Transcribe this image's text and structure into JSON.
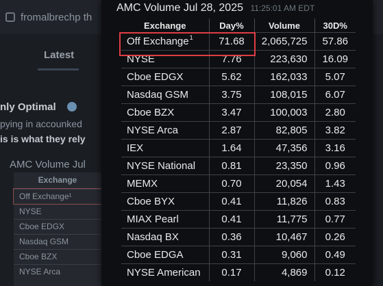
{
  "background": {
    "handle": "fromalbrechp th",
    "tab_label": "Latest",
    "username": "nly Optimal",
    "line1": "pying in accounked",
    "line2": "is is what they rely",
    "mini_title": "AMC Volume Jul",
    "mini_header": "Exchange",
    "mini_rows": [
      "Off Exchange¹",
      "NYSE",
      "Cboe EDGX",
      "Nasdaq GSM",
      "Cboe BZX",
      "NYSE Arca"
    ]
  },
  "panel": {
    "title": "AMC Volume Jul 28, 2025",
    "timestamp": "11:25:01 AM EDT",
    "columns": [
      "Exchange",
      "Day%",
      "Volume",
      "30D%"
    ],
    "highlight_color": "#e03e44",
    "rows": [
      {
        "exchange": "Off Exchange",
        "sup": "1",
        "day": "71.68",
        "volume": "2,065,725",
        "d30": "57.86"
      },
      {
        "exchange": "NYSE",
        "sup": "",
        "day": "7.76",
        "volume": "223,630",
        "d30": "16.09"
      },
      {
        "exchange": "Cboe EDGX",
        "sup": "",
        "day": "5.62",
        "volume": "162,033",
        "d30": "5.07"
      },
      {
        "exchange": "Nasdaq GSM",
        "sup": "",
        "day": "3.75",
        "volume": "108,015",
        "d30": "6.07"
      },
      {
        "exchange": "Cboe BZX",
        "sup": "",
        "day": "3.47",
        "volume": "100,003",
        "d30": "2.80"
      },
      {
        "exchange": "NYSE Arca",
        "sup": "",
        "day": "2.87",
        "volume": "82,805",
        "d30": "3.82"
      },
      {
        "exchange": "IEX",
        "sup": "",
        "day": "1.64",
        "volume": "47,356",
        "d30": "3.16"
      },
      {
        "exchange": "NYSE National",
        "sup": "",
        "day": "0.81",
        "volume": "23,350",
        "d30": "0.96"
      },
      {
        "exchange": "MEMX",
        "sup": "",
        "day": "0.70",
        "volume": "20,054",
        "d30": "1.43"
      },
      {
        "exchange": "Cboe BYX",
        "sup": "",
        "day": "0.41",
        "volume": "11,826",
        "d30": "0.83"
      },
      {
        "exchange": "MIAX Pearl",
        "sup": "",
        "day": "0.41",
        "volume": "11,775",
        "d30": "0.77"
      },
      {
        "exchange": "Nasdaq BX",
        "sup": "",
        "day": "0.36",
        "volume": "10,467",
        "d30": "0.26"
      },
      {
        "exchange": "Cboe EDGA",
        "sup": "",
        "day": "0.31",
        "volume": "9,060",
        "d30": "0.49"
      },
      {
        "exchange": "NYSE American",
        "sup": "",
        "day": "0.17",
        "volume": "4,869",
        "d30": "0.12"
      }
    ]
  }
}
